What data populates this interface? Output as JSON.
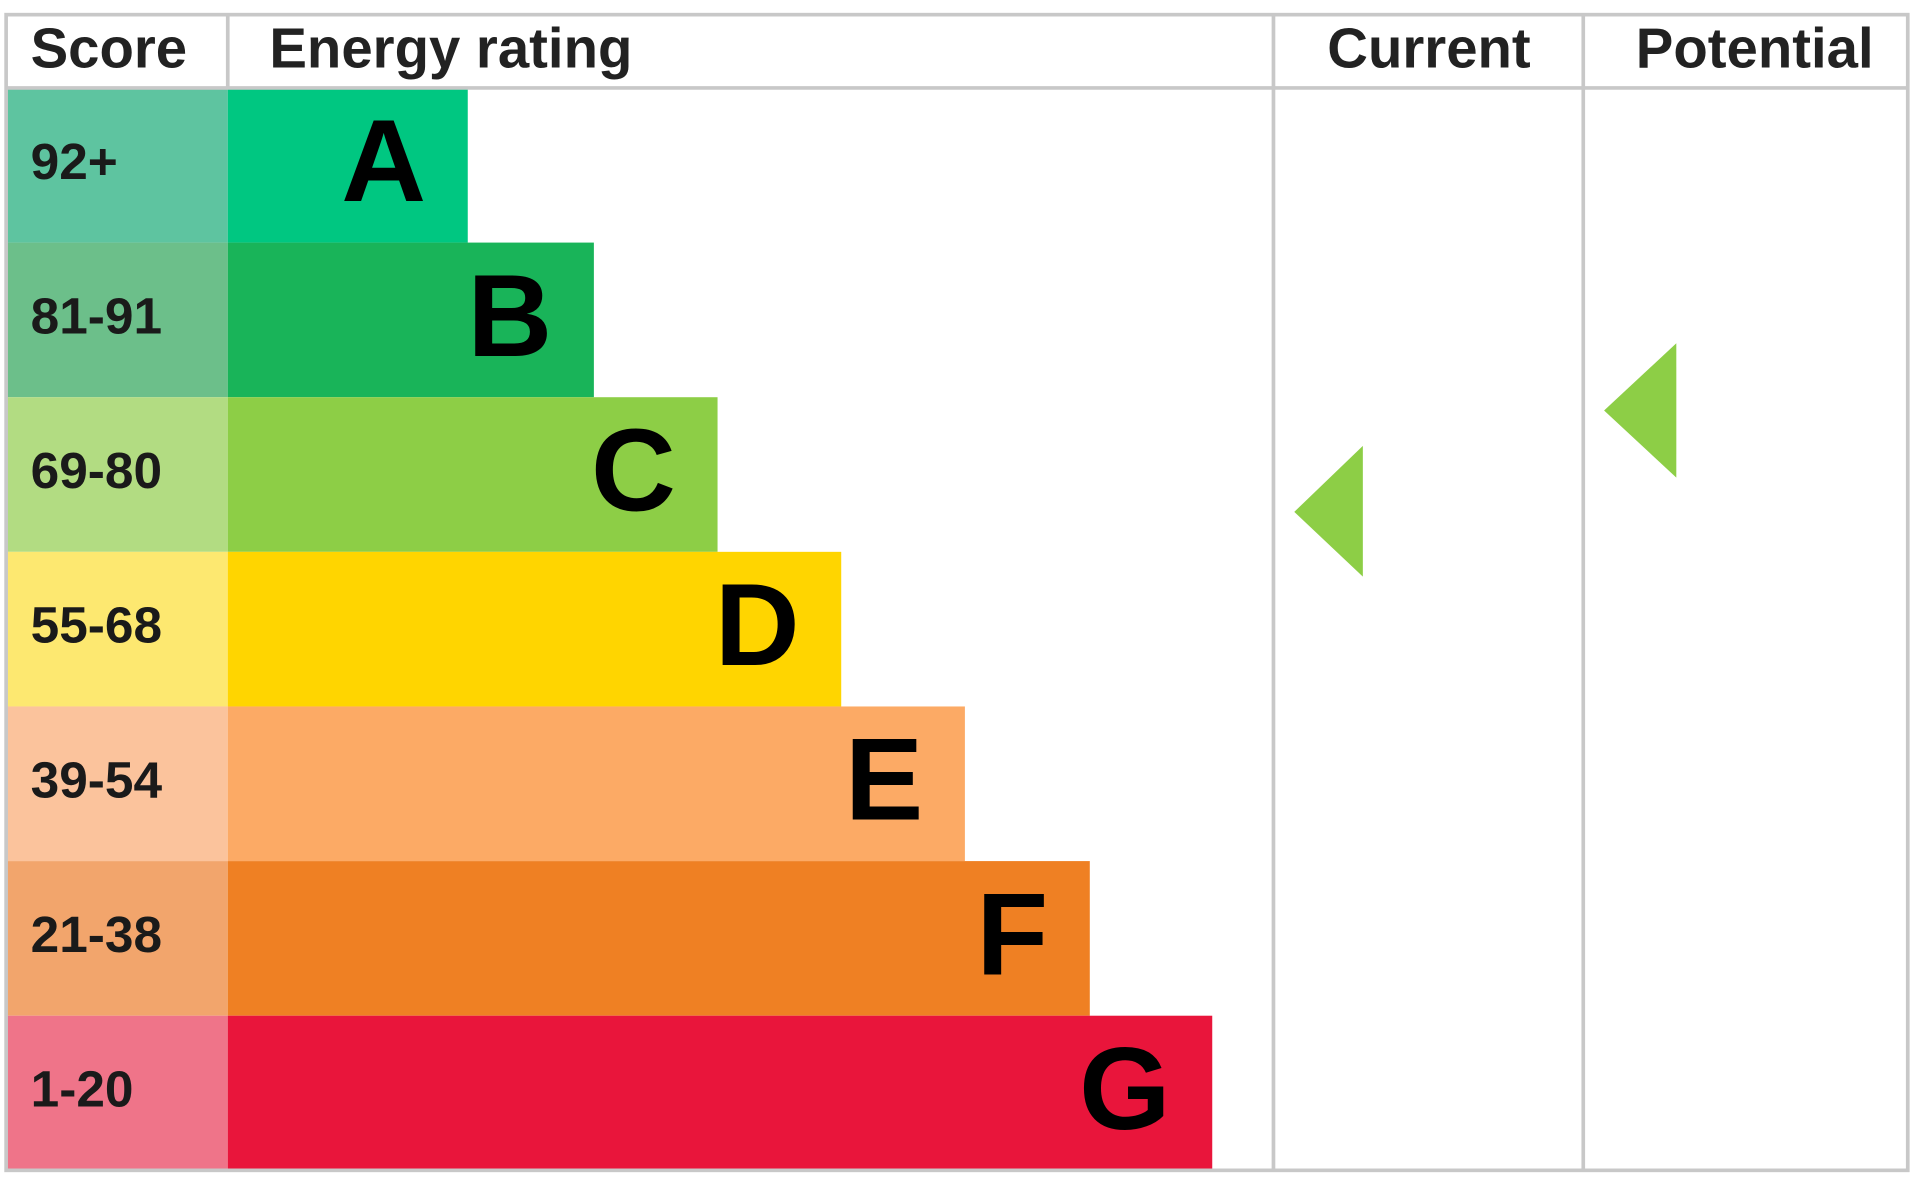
{
  "header": {
    "score": "Score",
    "energy_rating": "Energy rating",
    "current": "Current",
    "potential": "Potential"
  },
  "rows": [
    {
      "score": "92+",
      "rating": "A"
    },
    {
      "score": "81-91",
      "rating": "B"
    },
    {
      "score": "69-80",
      "rating": "C"
    },
    {
      "score": "55-68",
      "rating": "D"
    },
    {
      "score": "39-54",
      "rating": "E"
    },
    {
      "score": "21-38",
      "rating": "F"
    },
    {
      "score": "1-20",
      "rating": "G"
    }
  ]
}
